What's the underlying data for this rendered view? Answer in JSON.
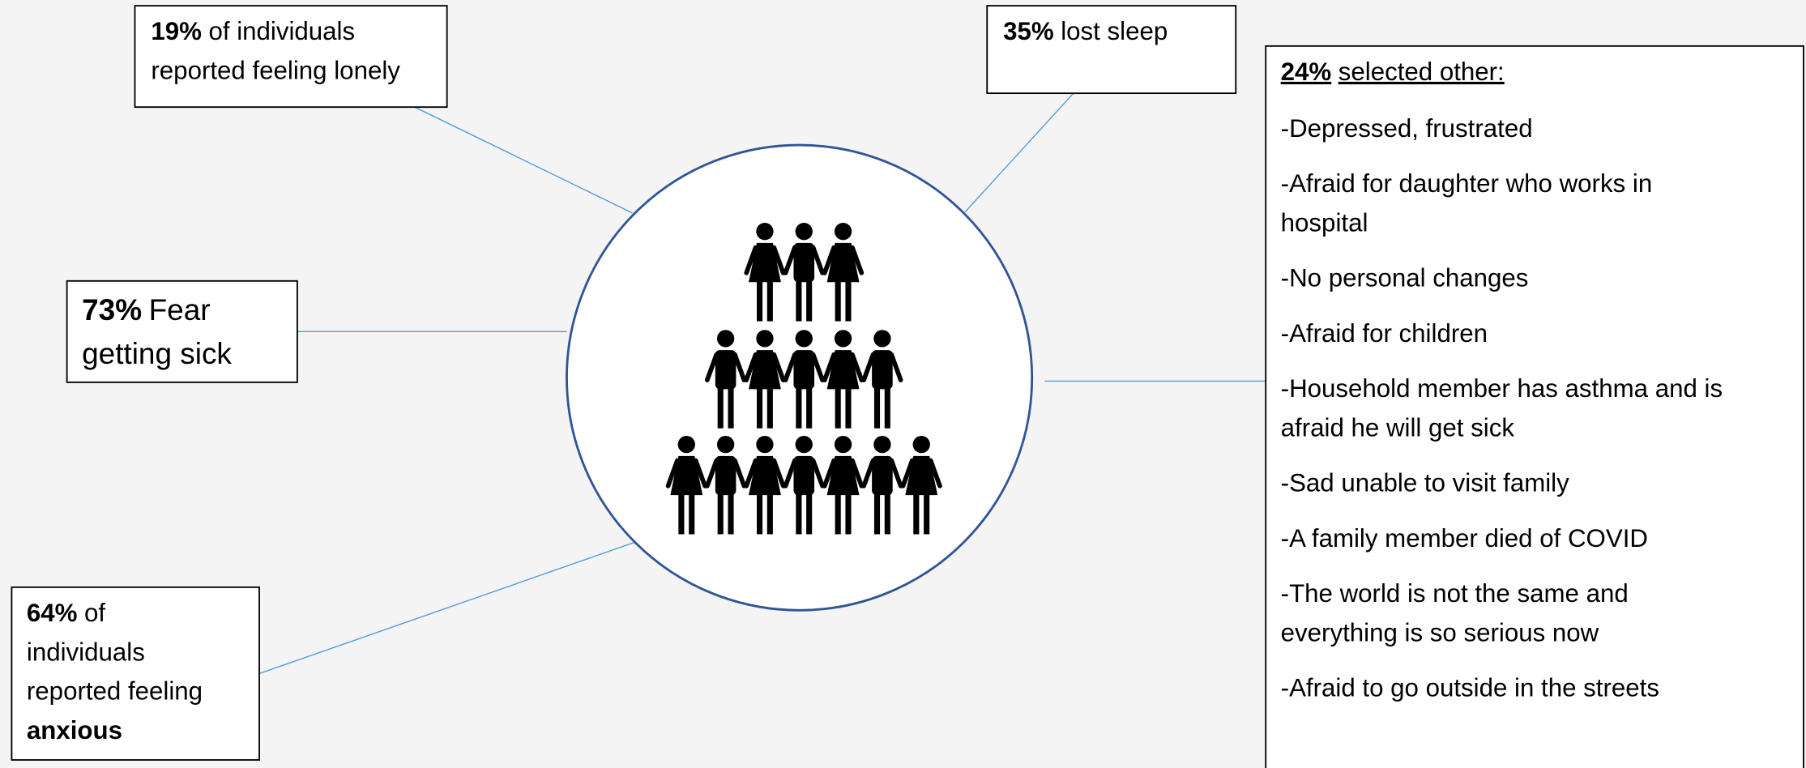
{
  "callouts": [
    {
      "lines": [
        [
          {
            "bold": "19%"
          },
          {
            "text": "of individuals"
          }
        ],
        [
          {
            "text": "reported feeling lonely"
          }
        ]
      ]
    },
    {
      "lines": [
        [
          {
            "bold": "35%"
          },
          {
            "text": "lost sleep"
          }
        ]
      ]
    },
    {
      "lines": [
        [
          {
            "bold": "73%"
          },
          {
            "text": "Fear"
          }
        ],
        [
          {
            "text": "getting sick"
          }
        ]
      ]
    },
    {
      "lines": [
        [
          {
            "bold": "64%"
          },
          {
            "text": "of"
          }
        ],
        [
          {
            "text": "individuals"
          }
        ],
        [
          {
            "text": "reported feeling"
          }
        ],
        [
          {
            "bold": "anxious"
          }
        ]
      ]
    }
  ],
  "other": {
    "heading": [
      {
        "bold": "24%"
      },
      {
        "text": "selected other:"
      }
    ],
    "items": [
      [
        "-Depressed, frustrated"
      ],
      [
        "-Afraid for daughter who works in",
        "hospital"
      ],
      [
        "-No personal changes"
      ],
      [
        "-Afraid for children"
      ],
      [
        "-Household member has asthma and is",
        "afraid he will get sick"
      ],
      [
        "-Sad unable to visit family"
      ],
      [
        "-A family member died of COVID"
      ],
      [
        "-The world is not the same and",
        "everything is so serious now"
      ],
      [
        "-Afraid to go outside in the streets"
      ]
    ]
  }
}
